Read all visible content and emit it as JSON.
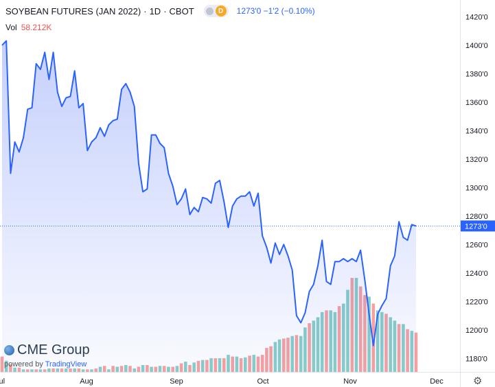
{
  "header": {
    "title": "SOYBEAN FUTURES (JAN 2022)",
    "interval": "1D",
    "exchange": "CBOT",
    "quote": "1273'0  −1'2 (−0.10%)",
    "vol_label": "Vol",
    "vol_value": "58.212K",
    "badge": "D"
  },
  "branding": {
    "logo_text": "CME Group",
    "powered_by": "powered by",
    "platform": "TradingView"
  },
  "icons": {
    "settings": "gear-icon"
  },
  "colors": {
    "line": "#2962ff",
    "up_volume": "#26a69a",
    "down_volume": "#ef5350",
    "last_price": "#2962ff"
  },
  "chart_data": {
    "type": "area",
    "x_labels": [
      "Jul",
      "Aug",
      "Sep",
      "Oct",
      "Nov",
      "Dec"
    ],
    "ylim": [
      1170,
      1425
    ],
    "yticks": [
      "1180'0",
      "1200'0",
      "1220'0",
      "1240'0",
      "1260'0",
      "1280'0",
      "1300'0",
      "1320'0",
      "1340'0",
      "1360'0",
      "1380'0",
      "1400'0",
      "1420'0"
    ],
    "last_price": 1273,
    "last_price_label": "1273'0",
    "grid": false,
    "prices": [
      1400,
      1403,
      1310,
      1332,
      1325,
      1335,
      1355,
      1356,
      1387,
      1383,
      1395,
      1376,
      1395,
      1367,
      1357,
      1363,
      1364,
      1382,
      1356,
      1359,
      1326,
      1332,
      1335,
      1342,
      1336,
      1344,
      1347,
      1348,
      1369,
      1373,
      1367,
      1357,
      1317,
      1297,
      1299,
      1337,
      1337,
      1331,
      1328,
      1310,
      1301,
      1288,
      1292,
      1299,
      1281,
      1286,
      1283,
      1293,
      1292,
      1289,
      1303,
      1305,
      1290,
      1272,
      1287,
      1292,
      1294,
      1294,
      1297,
      1287,
      1296,
      1266,
      1258,
      1247,
      1261,
      1253,
      1260,
      1252,
      1242,
      1210,
      1205,
      1212,
      1227,
      1232,
      1245,
      1263,
      1234,
      1232,
      1248,
      1248,
      1250,
      1248,
      1250,
      1248,
      1256,
      1235,
      1211,
      1189,
      1211,
      1217,
      1222,
      1245,
      1252,
      1276,
      1265,
      1263,
      1274,
      1273
    ],
    "volumes": [
      18,
      13,
      9,
      5,
      5,
      3,
      3,
      3,
      3,
      3,
      3,
      4,
      4,
      4,
      4,
      4,
      4,
      4,
      4,
      3,
      3,
      3,
      4,
      6,
      7,
      3,
      7,
      6,
      7,
      8,
      7,
      4,
      6,
      8,
      8,
      6,
      6,
      7,
      7,
      6,
      6,
      7,
      10,
      12,
      8,
      11,
      13,
      14,
      14,
      16,
      16,
      16,
      16,
      20,
      18,
      18,
      16,
      17,
      19,
      20,
      18,
      20,
      28,
      30,
      35,
      38,
      39,
      40,
      42,
      43,
      42,
      52,
      57,
      60,
      64,
      70,
      72,
      72,
      70,
      77,
      80,
      96,
      110,
      110,
      100,
      90,
      88,
      80,
      72,
      70,
      68,
      64,
      60,
      56,
      56,
      50,
      48,
      46
    ],
    "volume_up": [
      0,
      1,
      0,
      1,
      0,
      1,
      0,
      1,
      0,
      1,
      0,
      1,
      0,
      1,
      0,
      1,
      0,
      1,
      0,
      1,
      0,
      1,
      0,
      1,
      0,
      1,
      0,
      1,
      0,
      1,
      0,
      1,
      0,
      1,
      0,
      1,
      0,
      1,
      0,
      1,
      0,
      1,
      0,
      1,
      0,
      1,
      0,
      1,
      0,
      1,
      0,
      1,
      0,
      1,
      0,
      1,
      0,
      1,
      0,
      1,
      0,
      0,
      0,
      0,
      1,
      1,
      0,
      0,
      1,
      0,
      1,
      1,
      0,
      1,
      1,
      1,
      0,
      1,
      1,
      0,
      1,
      1,
      0,
      1,
      0,
      0,
      1,
      0,
      1,
      1,
      0,
      1,
      1,
      0,
      1,
      0,
      1,
      0
    ]
  }
}
